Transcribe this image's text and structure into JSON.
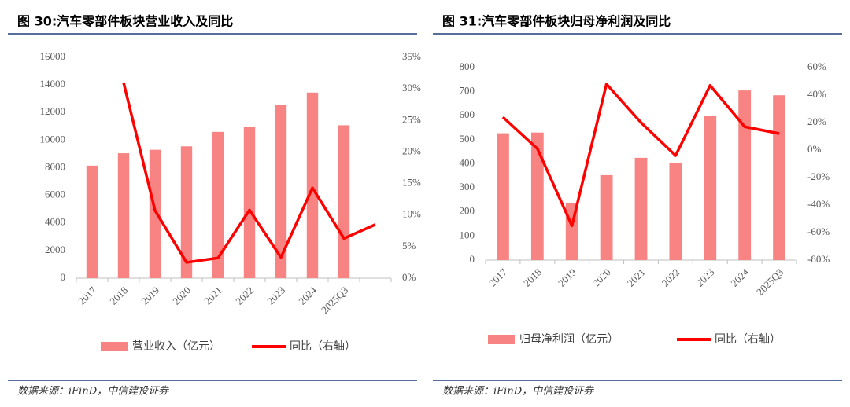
{
  "chart_data": [
    {
      "type": "bar_line",
      "title": "图 30:汽车零部件板块营业收入及同比",
      "source": "数据来源：iFinD，中信建投证券",
      "categories": [
        "2017",
        "2018",
        "2019",
        "2020",
        "2021",
        "2022",
        "2023",
        "2024",
        "2025Q3",
        null
      ],
      "series": [
        {
          "name": "营业收入（亿元）",
          "type": "bar",
          "color": "#f88383",
          "values": [
            8150,
            9050,
            9300,
            9550,
            10600,
            10950,
            12550,
            13450,
            11080,
            null
          ]
        },
        {
          "name": "同比（右轴）",
          "type": "line",
          "axis": "y2",
          "color": "#ff0000",
          "values": [
            null,
            31,
            10.7,
            2.5,
            3.2,
            10.8,
            3.3,
            14.3,
            6.3,
            8.5
          ]
        }
      ],
      "ylim": [
        0,
        16000
      ],
      "yticks": [
        0,
        2000,
        4000,
        6000,
        8000,
        10000,
        12000,
        14000,
        16000
      ],
      "y2lim": [
        0,
        35
      ],
      "y2ticks": [
        {
          "value": 0,
          "label": "0%"
        },
        {
          "value": 5,
          "label": "5%"
        },
        {
          "value": 10,
          "label": "10%"
        },
        {
          "value": 15,
          "label": "15%"
        },
        {
          "value": 20,
          "label": "20%"
        },
        {
          "value": 25,
          "label": "25%"
        },
        {
          "value": 30,
          "label": "30%"
        },
        {
          "value": 35,
          "label": "35%"
        }
      ],
      "grid": false
    },
    {
      "type": "bar_line",
      "title": "图 31:汽车零部件板块归母净利润及同比",
      "source": "数据来源：iFinD，中信建投证券",
      "categories": [
        "2017",
        "2018",
        "2019",
        "2020",
        "2021",
        "2022",
        "2023",
        "2024",
        "2025Q3"
      ],
      "series": [
        {
          "name": "归母净利润（亿元）",
          "type": "bar",
          "color": "#f88383",
          "values": [
            527,
            530,
            238,
            353,
            425,
            405,
            598,
            705,
            685
          ]
        },
        {
          "name": "同比（右轴）",
          "type": "line",
          "axis": "y2",
          "color": "#ff0000",
          "values": [
            24,
            1,
            -55,
            48,
            20,
            -4,
            47,
            17,
            12
          ]
        }
      ],
      "ylim": [
        0,
        800
      ],
      "yticks": [
        0,
        100,
        200,
        300,
        400,
        500,
        600,
        700,
        800
      ],
      "y2lim": [
        -80,
        60
      ],
      "y2ticks": [
        {
          "value": -80,
          "label": "-80%"
        },
        {
          "value": -60,
          "label": "-60%"
        },
        {
          "value": -40,
          "label": "-40%"
        },
        {
          "value": -20,
          "label": "-20%"
        },
        {
          "value": 0,
          "label": "0%"
        },
        {
          "value": 20,
          "label": "20%"
        },
        {
          "value": 40,
          "label": "40%"
        },
        {
          "value": 60,
          "label": "60%"
        }
      ],
      "grid": false
    }
  ]
}
